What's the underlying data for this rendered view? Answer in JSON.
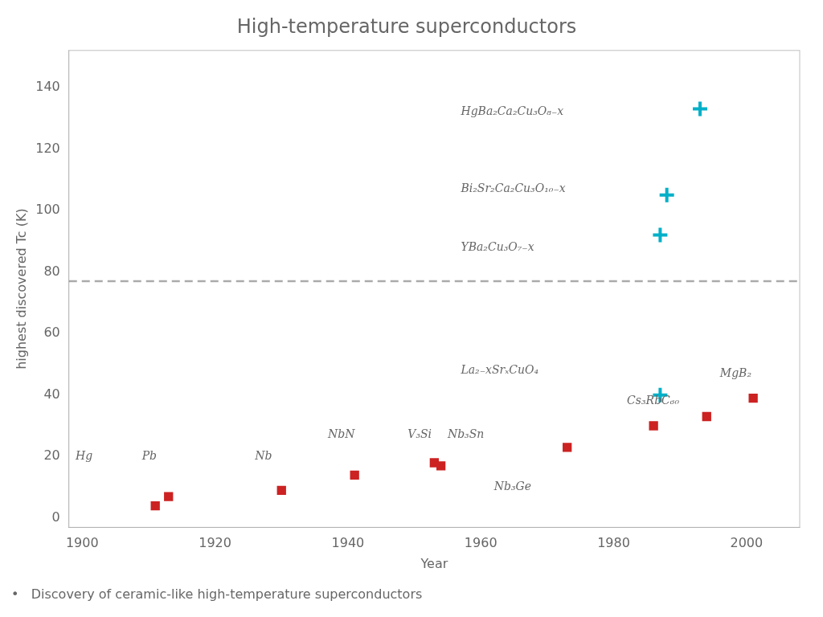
{
  "chart_data": {
    "type": "scatter",
    "title": "High-temperature superconductors",
    "subtitle": "•   Discovery of ceramic-like high-temperature superconductors",
    "xlabel": "Year",
    "ylabel": "highest discovered Tc (K)",
    "xlim": [
      1898,
      2008
    ],
    "ylim": [
      -3,
      152
    ],
    "xticks": [
      1900,
      1920,
      1940,
      1960,
      1980,
      2000
    ],
    "yticks": [
      0,
      20,
      40,
      60,
      80,
      100,
      120,
      140
    ],
    "grid": false,
    "legend": false,
    "hline": {
      "y": 77,
      "color": "#aaaaaa",
      "line_style": "dashed"
    },
    "series": [
      {
        "color": "#cc2222",
        "marker": "square",
        "x": [
          1911,
          1913,
          1930,
          1941,
          1953,
          1954,
          1973,
          1986,
          1994
        ],
        "values": [
          4,
          7,
          9,
          14,
          18,
          17,
          23,
          30,
          33
        ]
      },
      {
        "color": "#cc2222",
        "marker": "square",
        "x": [
          2001
        ],
        "values": [
          39
        ]
      },
      {
        "color": "#00b0c8",
        "marker": "plus",
        "x": [
          1987,
          1987,
          1988,
          1993
        ],
        "values": [
          40,
          92,
          105,
          133
        ]
      }
    ],
    "annotations": [
      {
        "x": 1899,
        "y": 20,
        "text": "Hg"
      },
      {
        "x": 1909,
        "y": 20,
        "text": "Pb"
      },
      {
        "x": 1926,
        "y": 20,
        "text": "Nb"
      },
      {
        "x": 1937,
        "y": 27,
        "text": "NbN"
      },
      {
        "x": 1949,
        "y": 27,
        "text": "V₃Si"
      },
      {
        "x": 1955,
        "y": 27,
        "text": "Nb₃Sn"
      },
      {
        "x": 1962,
        "y": 10,
        "text": "Nb₃Ge"
      },
      {
        "x": 1982,
        "y": 38,
        "text": "Cs₃RbC₆₀"
      },
      {
        "x": 1996,
        "y": 47,
        "text": "MgB₂"
      },
      {
        "x": 1957,
        "y": 48,
        "text": "La₂₋xSrₓCuO₄"
      },
      {
        "x": 1957,
        "y": 88,
        "text": "YBa₂Cu₃O₇₋x"
      },
      {
        "x": 1957,
        "y": 107,
        "text": "Bi₂Sr₂Ca₂Cu₃O₁₀₋x"
      },
      {
        "x": 1957,
        "y": 132,
        "text": "HgBa₂Ca₂Cu₃O₈₋x"
      }
    ]
  }
}
